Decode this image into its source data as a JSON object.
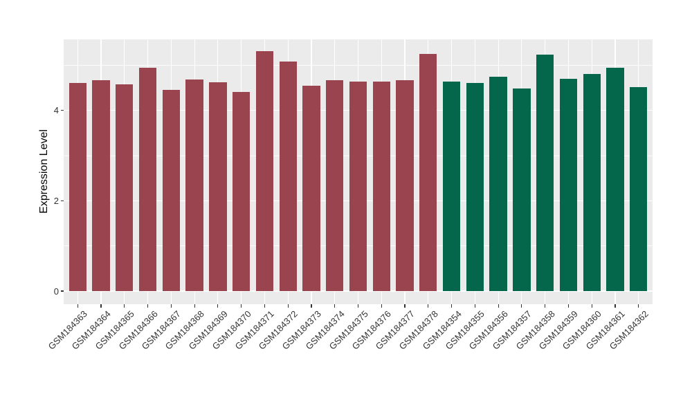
{
  "chart_data": {
    "type": "bar",
    "title": "",
    "xlabel": "",
    "ylabel": "Expression Level",
    "yticks": [
      0,
      2,
      4
    ],
    "yticks_minor": [
      1,
      3,
      5
    ],
    "ylim": [
      -0.29,
      5.57
    ],
    "grid": true,
    "legend_position": "none",
    "categories": [
      "GSM184363",
      "GSM184364",
      "GSM184365",
      "GSM184366",
      "GSM184367",
      "GSM184368",
      "GSM184369",
      "GSM184370",
      "GSM184371",
      "GSM184372",
      "GSM184373",
      "GSM184374",
      "GSM184375",
      "GSM184376",
      "GSM184377",
      "GSM184378",
      "GSM184354",
      "GSM184355",
      "GSM184356",
      "GSM184357",
      "GSM184358",
      "GSM184359",
      "GSM184360",
      "GSM184361",
      "GSM184362"
    ],
    "values": [
      4.6,
      4.67,
      4.58,
      4.94,
      4.45,
      4.69,
      4.62,
      4.41,
      5.31,
      5.08,
      4.55,
      4.67,
      4.63,
      4.64,
      4.67,
      5.25,
      4.63,
      4.61,
      4.75,
      4.49,
      5.23,
      4.7,
      4.81,
      4.94,
      4.51
    ],
    "bar_colors": [
      "#9A4450",
      "#9A4450",
      "#9A4450",
      "#9A4450",
      "#9A4450",
      "#9A4450",
      "#9A4450",
      "#9A4450",
      "#9A4450",
      "#9A4450",
      "#9A4450",
      "#9A4450",
      "#9A4450",
      "#9A4450",
      "#9A4450",
      "#9A4450",
      "#04664A",
      "#04664A",
      "#04664A",
      "#04664A",
      "#04664A",
      "#04664A",
      "#04664A",
      "#04664A",
      "#04664A"
    ],
    "colors": {
      "group_1_fill": "#9A4450",
      "group_2_fill": "#04664A",
      "panel_bg": "#EBEBEB",
      "grid": "#FFFFFF",
      "axis_text": "#333333",
      "tick": "#333333",
      "figure_bg": "#FFFFFF"
    }
  }
}
